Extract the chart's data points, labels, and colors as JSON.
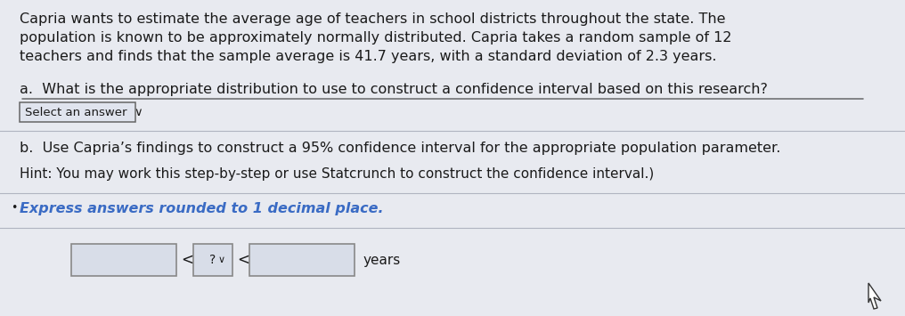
{
  "bg_color": "#e8eaf0",
  "text_color": "#1a1a1a",
  "line1": "Capria wants to estimate the average age of teachers in school districts throughout the state. The",
  "line2": "population is known to be approximately normally distributed. Capria takes a random sample of 12",
  "line3": "teachers and finds that the sample average is 41.7 years, with a standard deviation of 2.3 years.",
  "part_a_label": "a.  What is the appropriate distribution to use to construct a confidence interval based on this research?",
  "select_box_text": "Select an answer",
  "part_b_label": "b.  Use Capria’s findings to construct a 95% confidence interval for the appropriate population parameter.",
  "hint_text": "Hint: You may work this step-by-step or use Statcrunch to construct the confidence interval.)",
  "bullet": "’",
  "italic_text": "Express answers rounded to 1 decimal place.",
  "years_label": "years",
  "italic_color": "#3a6bc4",
  "box_edge_color": "#888888",
  "box_fill_color": "#d8dde8",
  "select_box_fill": "#e0e4ee",
  "font_size_main": 11.5,
  "font_size_hint": 11.0,
  "font_size_italic": 11.5
}
